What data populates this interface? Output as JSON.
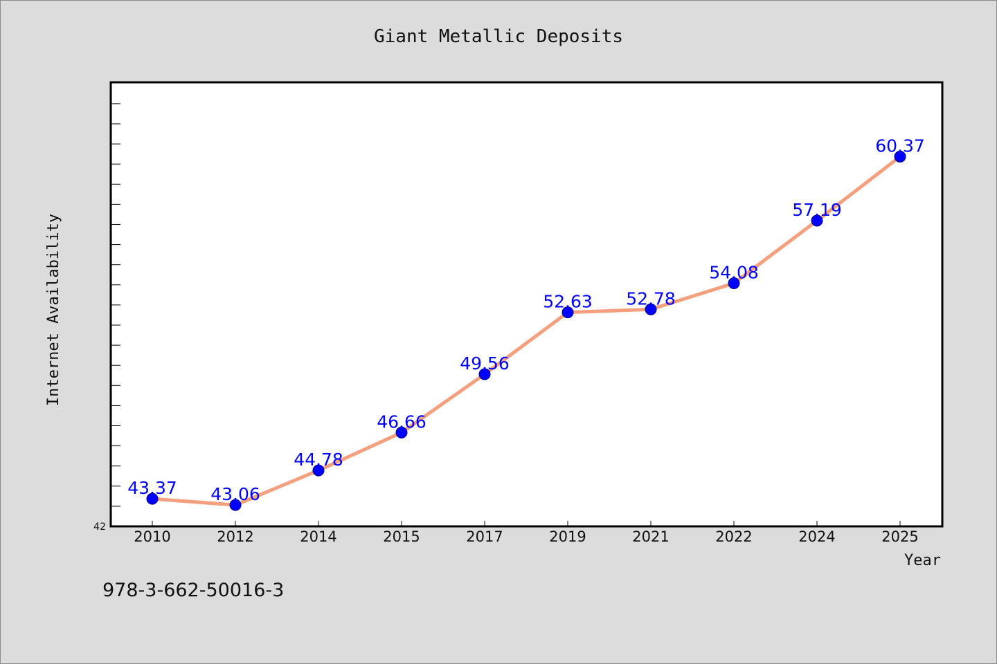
{
  "chart_data": {
    "type": "line",
    "title": "Giant Metallic Deposits",
    "xlabel": "Year",
    "ylabel": "Internet Availability",
    "categories": [
      "2010",
      "2012",
      "2014",
      "2015",
      "2017",
      "2019",
      "2021",
      "2022",
      "2024",
      "2025"
    ],
    "series": [
      {
        "values": [
          43.37,
          43.06,
          44.78,
          46.66,
          49.56,
          52.63,
          52.78,
          54.08,
          57.19,
          60.37
        ]
      }
    ],
    "data_labels": [
      "43.37",
      "43.06",
      "44.78",
      "46.66",
      "49.56",
      "52.63",
      "52.78",
      "54.08",
      "57.19",
      "60.37"
    ],
    "y_tick_labels": [
      "42"
    ],
    "ylim": [
      42,
      64
    ],
    "grid": false,
    "line_color": "#f4a07e",
    "marker_color": "#0000ff",
    "label_color": "#0000ff"
  },
  "footer": {
    "code": "978-3-662-50016-3"
  }
}
